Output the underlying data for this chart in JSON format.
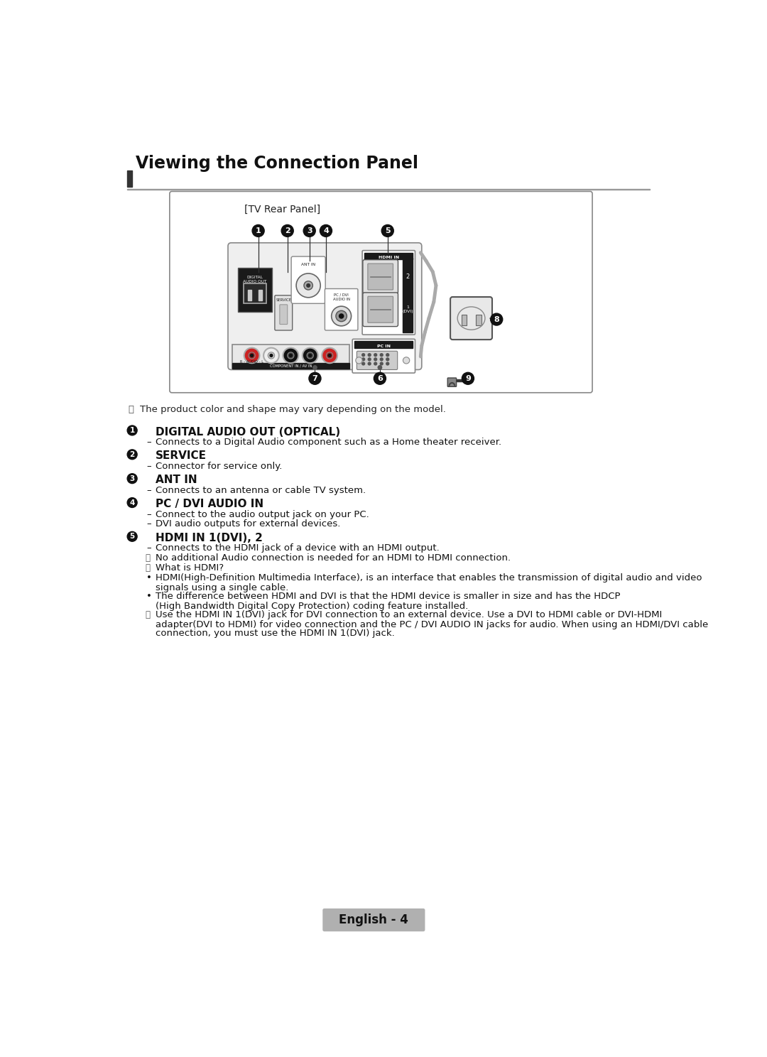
{
  "title": "Viewing the Connection Panel",
  "bg_color": "#ffffff",
  "page_label": "English - 4",
  "tv_rear_label": "[TV Rear Panel]",
  "product_note": "The product color and shape may vary depending on the model.",
  "sections": [
    {
      "num": "1",
      "bold": "DIGITAL AUDIO OUT (OPTICAL)",
      "items": [
        {
          "type": "dash",
          "text": "Connects to a Digital Audio component such as a Home theater receiver."
        }
      ]
    },
    {
      "num": "2",
      "bold": "SERVICE",
      "items": [
        {
          "type": "dash",
          "text": "Connector for service only."
        }
      ]
    },
    {
      "num": "3",
      "bold": "ANT IN",
      "items": [
        {
          "type": "dash",
          "text": "Connects to an antenna or cable TV system."
        }
      ]
    },
    {
      "num": "4",
      "bold": "PC / DVI AUDIO IN",
      "items": [
        {
          "type": "dash",
          "text": "Connect to the audio output jack on your PC."
        },
        {
          "type": "dash",
          "text": "DVI audio outputs for external devices."
        }
      ]
    },
    {
      "num": "5",
      "bold": "HDMI IN 1(DVI), 2",
      "items": [
        {
          "type": "dash",
          "text": "Connects to the HDMI jack of a device with an HDMI output."
        },
        {
          "type": "note",
          "text": "No additional Audio connection is needed for an HDMI to HDMI connection."
        },
        {
          "type": "note",
          "text": "What is HDMI?"
        },
        {
          "type": "bullet",
          "text": "HDMI(High-Definition Multimedia Interface), is an interface that enables the transmission of digital audio and video\nsignals using a single cable."
        },
        {
          "type": "bullet",
          "text": "The difference between HDMI and DVI is that the HDMI device is smaller in size and has the HDCP\n(High Bandwidth Digital Copy Protection) coding feature installed."
        },
        {
          "type": "note",
          "text": "Use the HDMI IN 1(DVI) jack for DVI connection to an external device. Use a DVI to HDMI cable or DVI-HDMI\nadapter(DVI to HDMI) for video connection and the PC / DVI AUDIO IN jacks for audio. When using an HDMI/DVI cable\nconnection, you must use the HDMI IN 1(DVI) jack."
        }
      ]
    }
  ]
}
